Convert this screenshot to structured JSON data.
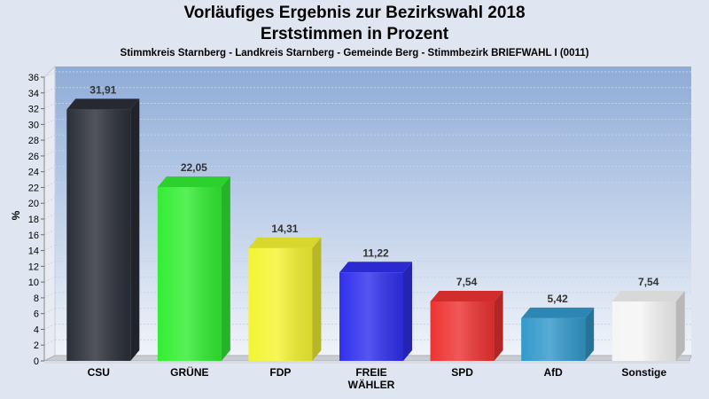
{
  "chart_data": {
    "type": "bar",
    "title": "Vorläufiges Ergebnis zur Bezirkswahl 2018",
    "subtitle": "Erststimmen in Prozent",
    "caption": "Stimmkreis Starnberg - Landkreis Starnberg - Gemeinde Berg - Stimmbezirk BRIEFWAHL I (0011)",
    "ylabel": "%",
    "xlabel": "",
    "ylim": [
      0,
      36
    ],
    "yticks": [
      0,
      2,
      4,
      6,
      8,
      10,
      12,
      14,
      16,
      18,
      20,
      22,
      24,
      26,
      28,
      30,
      32,
      34,
      36
    ],
    "grid": true,
    "categories": [
      "CSU",
      "GRÜNE",
      "FDP",
      "FREIE WÄHLER",
      "SPD",
      "AfD",
      "Sonstige"
    ],
    "value_labels": [
      "31,91",
      "22,05",
      "14,31",
      "11,22",
      "7,54",
      "5,42",
      "7,54"
    ],
    "values": [
      31.91,
      22.05,
      14.31,
      11.22,
      7.54,
      5.42,
      7.54
    ],
    "colors": [
      "#2b2f38",
      "#33ee33",
      "#f4f433",
      "#3030ee",
      "#ee3333",
      "#3399cc",
      "#f5f5f5"
    ]
  }
}
